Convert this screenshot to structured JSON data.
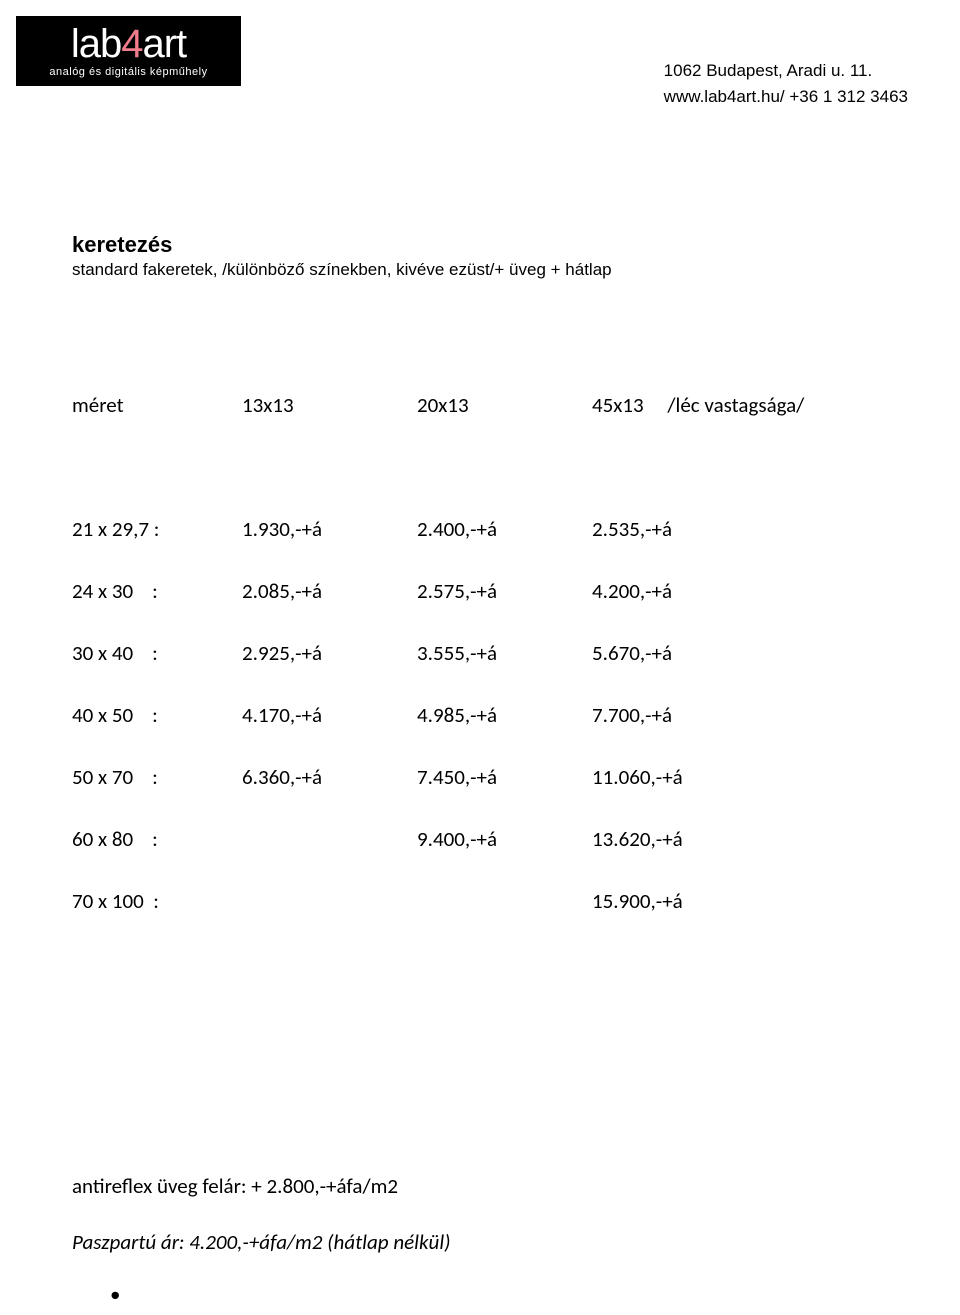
{
  "logo": {
    "pre": "lab",
    "four": "4",
    "post": "art",
    "sub": "analóg és digitális képműhely",
    "bg_color": "#000000",
    "text_color": "#ffffff",
    "accent_color": "#f07c8c"
  },
  "contact": {
    "line1": "1062 Budapest, Aradi u. 11.",
    "line2": "www.lab4art.hu/ +36 1 312  3463"
  },
  "title": "keretezés",
  "subtitle": "standard fakeretek, /különböző színekben, kivéve ezüst/+ üveg + hátlap",
  "table": {
    "header": {
      "c1": "méret",
      "c2": "13x13",
      "c3": "20x13",
      "c4": "45x13     /léc vastagsága/"
    },
    "rows": [
      {
        "c1": "21 x 29,7 :",
        "c2": "1.930,-+á",
        "c3": "2.400,-+á",
        "c4": "2.535,-+á"
      },
      {
        "c1": "24 x 30    :",
        "c2": "2.085,-+á",
        "c3": "2.575,-+á",
        "c4": "4.200,-+á"
      },
      {
        "c1": "30 x 40    :",
        "c2": "2.925,-+á",
        "c3": "3.555,-+á",
        "c4": "5.670,-+á"
      },
      {
        "c1": "40 x 50    :",
        "c2": "4.170,-+á",
        "c3": "4.985,-+á",
        "c4": "7.700,-+á"
      },
      {
        "c1": "50 x 70    :",
        "c2": "6.360,-+á",
        "c3": "7.450,-+á",
        "c4": "11.060,-+á"
      },
      {
        "c1": "60 x 80    :",
        "c2": "",
        "c3": "9.400,-+á",
        "c4": "13.620,-+á"
      },
      {
        "c1": "70 x 100  :",
        "c2": "",
        "c3": "",
        "c4": "15.900,-+á"
      }
    ]
  },
  "footer": {
    "line1": "antireflex üveg felár:  + 2.800,-+áfa/m2",
    "line2": "Paszpartú ár:  4.200,-+áfa/m2 (hátlap nélkül)"
  },
  "bullet": "•"
}
